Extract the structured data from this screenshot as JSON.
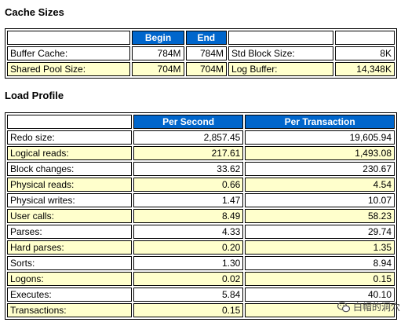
{
  "cache_sizes": {
    "title": "Cache Sizes",
    "headers": [
      "Begin",
      "End"
    ],
    "rows": [
      {
        "label": "Buffer Cache:",
        "begin": "784M",
        "end": "784M",
        "label2": "Std Block Size:",
        "value2": "8K"
      },
      {
        "label": "Shared Pool Size:",
        "begin": "704M",
        "end": "704M",
        "label2": "Log Buffer:",
        "value2": "14,348K"
      }
    ]
  },
  "load_profile": {
    "title": "Load Profile",
    "headers": [
      "Per Second",
      "Per Transaction"
    ],
    "rows": [
      {
        "label": "Redo size:",
        "per_second": "2,857.45",
        "per_transaction": "19,605.94"
      },
      {
        "label": "Logical reads:",
        "per_second": "217.61",
        "per_transaction": "1,493.08"
      },
      {
        "label": "Block changes:",
        "per_second": "33.62",
        "per_transaction": "230.67"
      },
      {
        "label": "Physical reads:",
        "per_second": "0.66",
        "per_transaction": "4.54"
      },
      {
        "label": "Physical writes:",
        "per_second": "1.47",
        "per_transaction": "10.07"
      },
      {
        "label": "User calls:",
        "per_second": "8.49",
        "per_transaction": "58.23"
      },
      {
        "label": "Parses:",
        "per_second": "4.33",
        "per_transaction": "29.74"
      },
      {
        "label": "Hard parses:",
        "per_second": "0.20",
        "per_transaction": "1.35"
      },
      {
        "label": "Sorts:",
        "per_second": "1.30",
        "per_transaction": "8.94"
      },
      {
        "label": "Logons:",
        "per_second": "0.02",
        "per_transaction": "0.15"
      },
      {
        "label": "Executes:",
        "per_second": "5.84",
        "per_transaction": "40.10"
      },
      {
        "label": "Transactions:",
        "per_second": "0.15",
        "per_transaction": ""
      }
    ]
  },
  "watermark": {
    "text": "白帽的洞穴",
    "icon": "wechat-icon"
  },
  "colors": {
    "header_bg": "#0066cc",
    "header_text": "#ffffff",
    "row_alt": "#ffffcc"
  }
}
